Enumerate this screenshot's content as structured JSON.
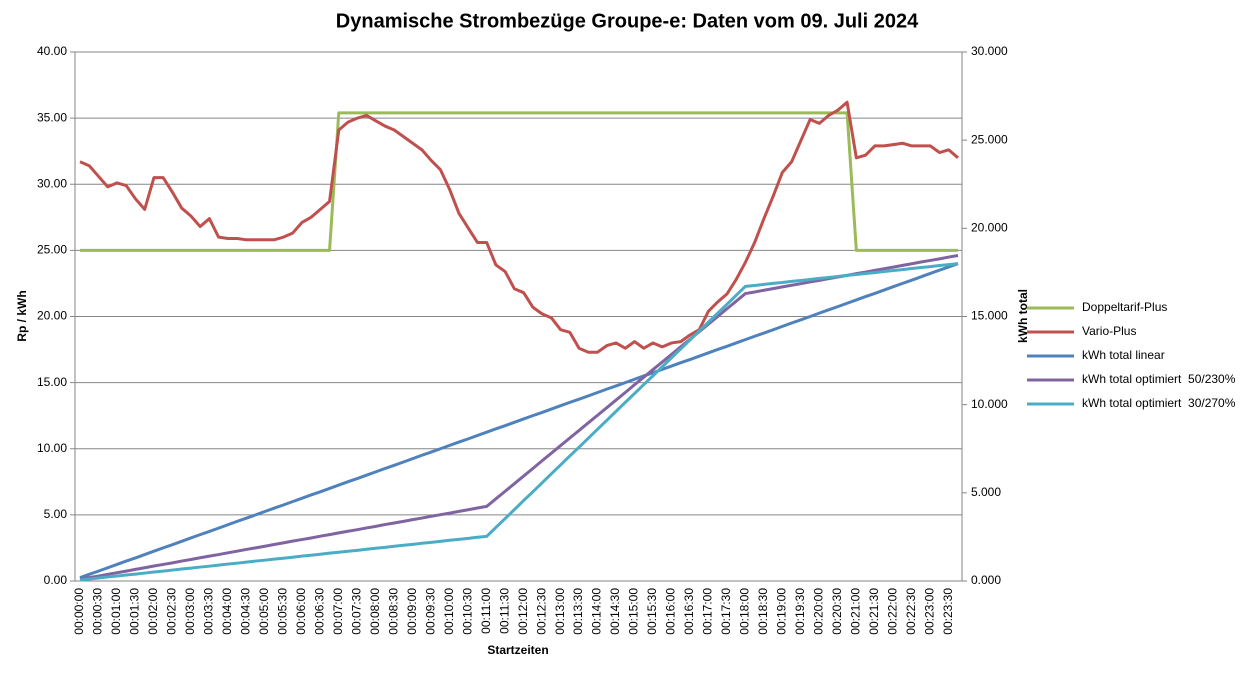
{
  "chart_data": {
    "type": "line",
    "title": "Dynamische Strombezüge Groupe-e: Daten vom 09. Juli 2024",
    "xlabel": "Startzeiten",
    "ylabel": "Rp / kWh",
    "y2label": "kWh total",
    "legend": "right",
    "grid": true,
    "categories": [
      "00:00:00",
      null,
      "00:00:30",
      null,
      "00:01:00",
      null,
      "00:01:30",
      null,
      "00:02:00",
      null,
      "00:02:30",
      null,
      "00:03:00",
      null,
      "00:03:30",
      null,
      "00:04:00",
      null,
      "00:04:30",
      null,
      "00:05:00",
      null,
      "00:05:30",
      null,
      "00:06:00",
      null,
      "00:06:30",
      null,
      "00:07:00",
      null,
      "00:07:30",
      null,
      "00:08:00",
      null,
      "00:08:30",
      null,
      "00:09:00",
      null,
      "00:09:30",
      null,
      "00:10:00",
      null,
      "00:10:30",
      null,
      "00:11:00",
      null,
      "00:11:30",
      null,
      "00:12:00",
      null,
      "00:12:30",
      null,
      "00:13:00",
      null,
      "00:13:30",
      null,
      "00:14:00",
      null,
      "00:14:30",
      null,
      "00:15:00",
      null,
      "00:15:30",
      null,
      "00:16:00",
      null,
      "00:16:30",
      null,
      "00:17:00",
      null,
      "00:17:30",
      null,
      "00:18:00",
      null,
      "00:18:30",
      null,
      "00:19:00",
      null,
      "00:19:30",
      null,
      "00:20:00",
      null,
      "00:20:30",
      null,
      "00:21:00",
      null,
      "00:21:30",
      null,
      "00:22:00",
      null,
      "00:22:30",
      null,
      "00:23:00",
      null,
      "00:23:30",
      null
    ],
    "ylim": [
      0,
      40
    ],
    "yticks": [
      {
        "value": 0,
        "label": "0.00"
      },
      {
        "value": 5,
        "label": "5.00"
      },
      {
        "value": 10,
        "label": "10.00"
      },
      {
        "value": 15,
        "label": "15.00"
      },
      {
        "value": 20,
        "label": "20.00"
      },
      {
        "value": 25,
        "label": "25.00"
      },
      {
        "value": 30,
        "label": "30.00"
      },
      {
        "value": 35,
        "label": "35.00"
      },
      {
        "value": 40,
        "label": "40.00"
      }
    ],
    "y2lim": [
      0,
      30
    ],
    "y2ticks": [
      {
        "value": 0,
        "label": "0.000"
      },
      {
        "value": 5,
        "label": "5.000"
      },
      {
        "value": 10,
        "label": "10.000"
      },
      {
        "value": 15,
        "label": "15.000"
      },
      {
        "value": 20,
        "label": "20.000"
      },
      {
        "value": 25,
        "label": "25.000"
      },
      {
        "value": 30,
        "label": "30.000"
      }
    ],
    "series": [
      {
        "name": "Doppeltarif-Plus",
        "color": "#9bbb59",
        "values": [
          25,
          25,
          25,
          25,
          25,
          25,
          25,
          25,
          25,
          25,
          25,
          25,
          25,
          25,
          25,
          25,
          25,
          25,
          25,
          25,
          25,
          25,
          25,
          25,
          25,
          25,
          25,
          25,
          35.4,
          35.4,
          35.4,
          35.4,
          35.4,
          35.4,
          35.4,
          35.4,
          35.4,
          35.4,
          35.4,
          35.4,
          35.4,
          35.4,
          35.4,
          35.4,
          35.4,
          35.4,
          35.4,
          35.4,
          35.4,
          35.4,
          35.4,
          35.4,
          35.4,
          35.4,
          35.4,
          35.4,
          35.4,
          35.4,
          35.4,
          35.4,
          35.4,
          35.4,
          35.4,
          35.4,
          35.4,
          35.4,
          35.4,
          35.4,
          35.4,
          35.4,
          35.4,
          35.4,
          35.4,
          35.4,
          35.4,
          35.4,
          35.4,
          35.4,
          35.4,
          35.4,
          35.4,
          35.4,
          35.4,
          35.4,
          25,
          25,
          25,
          25,
          25,
          25,
          25,
          25,
          25,
          25,
          25,
          25
        ]
      },
      {
        "name": "Vario-Plus",
        "color": "#c0504d",
        "values": [
          31.7,
          31.4,
          30.6,
          29.8,
          30.1,
          29.9,
          28.9,
          28.1,
          30.5,
          30.5,
          29.4,
          28.2,
          27.6,
          26.8,
          27.4,
          26.0,
          25.9,
          25.9,
          25.8,
          25.8,
          25.8,
          25.8,
          26.0,
          26.3,
          27.1,
          27.5,
          28.1,
          28.7,
          34.1,
          34.7,
          35.0,
          35.2,
          34.8,
          34.4,
          34.1,
          33.6,
          33.1,
          32.6,
          31.8,
          31.1,
          29.6,
          27.8,
          26.7,
          25.6,
          25.6,
          23.9,
          23.4,
          22.1,
          21.8,
          20.7,
          20.2,
          19.9,
          19.0,
          18.8,
          17.6,
          17.3,
          17.3,
          17.8,
          18.0,
          17.6,
          18.1,
          17.6,
          18.0,
          17.7,
          18.0,
          18.1,
          18.6,
          19.0,
          20.4,
          21.1,
          21.7,
          22.8,
          24.1,
          25.6,
          27.4,
          29.1,
          30.9,
          31.7,
          33.3,
          34.9,
          34.6,
          35.2,
          35.6,
          36.2,
          32.0,
          32.2,
          32.9,
          32.9,
          33.0,
          33.1,
          32.9,
          32.9,
          32.9,
          32.4,
          32.6,
          32.0
        ]
      },
      {
        "name": "kWh total linear",
        "color": "#4f81bd",
        "axis": "y2",
        "values": [
          0.19,
          0.38,
          0.56,
          0.75,
          0.94,
          1.13,
          1.31,
          1.5,
          1.69,
          1.88,
          2.06,
          2.25,
          2.44,
          2.63,
          2.81,
          3.0,
          3.19,
          3.38,
          3.56,
          3.75,
          3.94,
          4.13,
          4.31,
          4.5,
          4.69,
          4.88,
          5.06,
          5.25,
          5.44,
          5.63,
          5.81,
          6.0,
          6.19,
          6.38,
          6.56,
          6.75,
          6.94,
          7.13,
          7.31,
          7.5,
          7.69,
          7.88,
          8.06,
          8.25,
          8.44,
          8.63,
          8.81,
          9.0,
          9.19,
          9.38,
          9.56,
          9.75,
          9.94,
          10.13,
          10.31,
          10.5,
          10.69,
          10.88,
          11.06,
          11.25,
          11.44,
          11.63,
          11.81,
          12.0,
          12.19,
          12.38,
          12.56,
          12.75,
          12.94,
          13.13,
          13.31,
          13.5,
          13.69,
          13.88,
          14.06,
          14.25,
          14.44,
          14.63,
          14.81,
          15.0,
          15.19,
          15.38,
          15.56,
          15.75,
          15.94,
          16.13,
          16.31,
          16.5,
          16.69,
          16.88,
          17.06,
          17.25,
          17.44,
          17.63,
          17.81,
          18.0
        ]
      },
      {
        "name": "kWh total optimiert  50/230%",
        "color": "#8064a2",
        "axis": "y2",
        "values": [
          0.09,
          0.19,
          0.28,
          0.38,
          0.47,
          0.56,
          0.66,
          0.75,
          0.85,
          0.94,
          1.03,
          1.13,
          1.22,
          1.32,
          1.41,
          1.5,
          1.6,
          1.69,
          1.79,
          1.88,
          1.97,
          2.07,
          2.16,
          2.26,
          2.35,
          2.44,
          2.54,
          2.63,
          2.73,
          2.82,
          2.91,
          3.01,
          3.1,
          3.2,
          3.29,
          3.38,
          3.48,
          3.57,
          3.67,
          3.76,
          3.85,
          3.95,
          4.04,
          4.14,
          4.23,
          4.66,
          5.09,
          5.52,
          5.95,
          6.38,
          6.82,
          7.25,
          7.68,
          8.11,
          8.54,
          8.97,
          9.4,
          9.83,
          10.26,
          10.69,
          11.13,
          11.56,
          11.99,
          12.42,
          12.85,
          13.28,
          13.71,
          14.14,
          14.57,
          15.0,
          15.44,
          15.87,
          16.3,
          16.39,
          16.49,
          16.58,
          16.68,
          16.77,
          16.86,
          16.96,
          17.05,
          17.15,
          17.24,
          17.33,
          17.43,
          17.52,
          17.62,
          17.71,
          17.8,
          17.9,
          17.99,
          18.09,
          18.18,
          18.27,
          18.37,
          18.46
        ]
      },
      {
        "name": "kWh total optimiert  30/270%",
        "color": "#4bacc6",
        "axis": "y2",
        "values": [
          0.06,
          0.11,
          0.17,
          0.23,
          0.28,
          0.34,
          0.39,
          0.45,
          0.51,
          0.56,
          0.62,
          0.68,
          0.73,
          0.79,
          0.84,
          0.9,
          0.96,
          1.01,
          1.07,
          1.13,
          1.18,
          1.24,
          1.29,
          1.35,
          1.41,
          1.46,
          1.52,
          1.58,
          1.63,
          1.69,
          1.74,
          1.8,
          1.86,
          1.91,
          1.97,
          2.03,
          2.08,
          2.14,
          2.19,
          2.25,
          2.31,
          2.36,
          2.42,
          2.48,
          2.53,
          3.04,
          3.54,
          4.05,
          4.56,
          5.06,
          5.57,
          6.08,
          6.58,
          7.09,
          7.59,
          8.1,
          8.61,
          9.11,
          9.62,
          10.13,
          10.63,
          11.14,
          11.64,
          12.15,
          12.66,
          13.16,
          13.67,
          14.18,
          14.68,
          15.19,
          15.69,
          16.2,
          16.71,
          16.76,
          16.82,
          16.88,
          16.93,
          16.99,
          17.04,
          17.1,
          17.16,
          17.21,
          17.27,
          17.33,
          17.38,
          17.44,
          17.49,
          17.55,
          17.61,
          17.66,
          17.72,
          17.78,
          17.83,
          17.89,
          17.94,
          18.0
        ]
      }
    ]
  }
}
